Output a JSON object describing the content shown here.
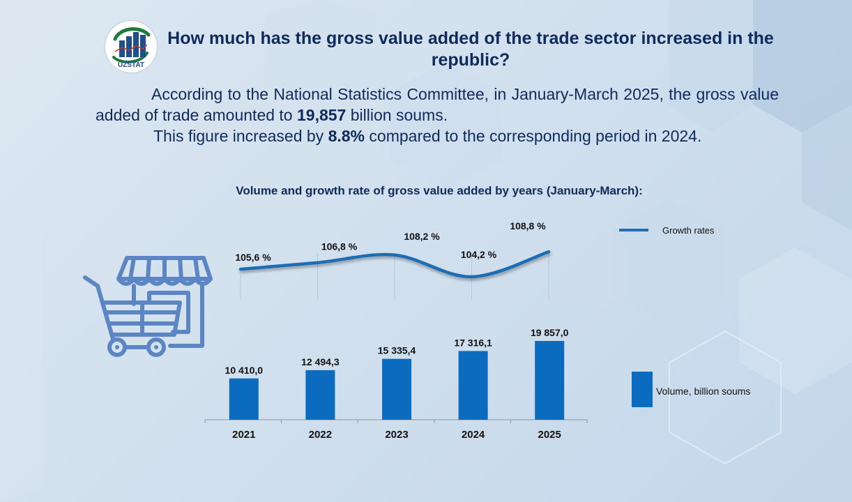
{
  "header": {
    "logo_text": "UZSTAT",
    "title": "How much has the gross value added of the trade sector increased in the republic?"
  },
  "intro": {
    "para1": "According to the National Statistics Committee, in January-March 2025, the gross value added of trade amounted to ",
    "para1_value": "19,857",
    "para1_suffix": " billion soums.",
    "para2_prefix": "This figure increased by ",
    "para2_value": "8.8%",
    "para2_suffix": " compared to the corresponding period in 2024."
  },
  "colors": {
    "title": "#0f2a5c",
    "bar": "#0b6bbf",
    "line": "#1f6db3",
    "icon": "#5b86c3"
  },
  "icons": {
    "illustration": "shopping-cart-storefront-icon"
  },
  "chart_data": {
    "type": "bar+line",
    "title": "Volume and growth rate of gross value added by years (January-March):",
    "categories": [
      "2021",
      "2022",
      "2023",
      "2024",
      "2025"
    ],
    "series": [
      {
        "name": "Volume, billion soums",
        "type": "bar",
        "values": [
          10410.0,
          12494.3,
          15335.4,
          17316.1,
          19857.0
        ],
        "labels": [
          "10 410,0",
          "12 494,3",
          "15 335,4",
          "17 316,1",
          "19 857,0"
        ]
      },
      {
        "name": "Growth rates",
        "type": "line",
        "values": [
          105.6,
          106.8,
          108.2,
          104.2,
          108.8
        ],
        "labels": [
          "105,6  %",
          "106,8  %",
          "108,2  %",
          "104,2  %",
          "108,8  %"
        ]
      }
    ],
    "legend": [
      {
        "label": "Growth rates",
        "type": "line",
        "placement": "top-right"
      },
      {
        "label": "Volume, billion soums",
        "type": "bar",
        "placement": "right"
      }
    ],
    "xlabel": "",
    "ylabel": "",
    "bar_ylim": [
      0,
      20000
    ],
    "grid": false
  }
}
